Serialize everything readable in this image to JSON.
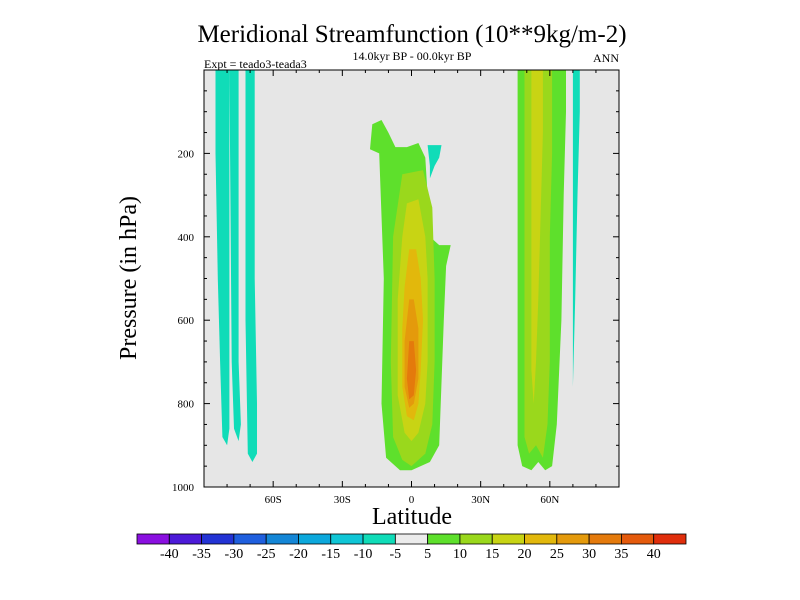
{
  "chart_data": {
    "type": "contour",
    "title": "Meridional Streamfunction (10**9kg/m-2)",
    "subtitle": "14.0kyr BP - 00.0kyr BP",
    "left_label": "Expt = teado3-teada3",
    "right_label": "ANN",
    "xlabel": "Latitude",
    "ylabel": "Pressure (in hPa)",
    "xlim": [
      -90,
      90
    ],
    "ylim": [
      1000,
      0
    ],
    "x_ticks": [
      {
        "value": -60,
        "label": "60S"
      },
      {
        "value": -30,
        "label": "30S"
      },
      {
        "value": 0,
        "label": "0"
      },
      {
        "value": 30,
        "label": "30N"
      },
      {
        "value": 60,
        "label": "60N"
      }
    ],
    "y_ticks": [
      {
        "value": 200,
        "label": "200"
      },
      {
        "value": 400,
        "label": "400"
      },
      {
        "value": 600,
        "label": "600"
      },
      {
        "value": 800,
        "label": "800"
      },
      {
        "value": 1000,
        "label": "1000"
      }
    ],
    "background_color": "#e6e6e6",
    "contour_levels": [
      -40,
      -35,
      -30,
      -25,
      -20,
      -15,
      -10,
      -5,
      5,
      10,
      15,
      20,
      25,
      30,
      35,
      40
    ],
    "colorbar": {
      "labels": [
        "-40",
        "-35",
        "-30",
        "-25",
        "-20",
        "-15",
        "-10",
        "-5",
        "5",
        "10",
        "15",
        "20",
        "25",
        "30",
        "35",
        "40"
      ],
      "colors": [
        "#8a10e0",
        "#4c1ad8",
        "#2333d4",
        "#1f5fde",
        "#1486d6",
        "#0ca8dc",
        "#10c6d6",
        "#10dcb8",
        "#ececec",
        "#5ee02c",
        "#9ad81c",
        "#c8d414",
        "#e2b80c",
        "#e49a0c",
        "#e47a0c",
        "#e45a0c",
        "#e02e0c"
      ]
    },
    "regions": [
      {
        "color": "#10dcb8",
        "points": [
          [
            -85,
            0
          ],
          [
            -79,
            0
          ],
          [
            -79,
            860
          ],
          [
            -80,
            900
          ],
          [
            -82,
            880
          ],
          [
            -83,
            700
          ],
          [
            -84,
            500
          ],
          [
            -85,
            200
          ]
        ]
      },
      {
        "color": "#10dcb8",
        "points": [
          [
            -79,
            0
          ],
          [
            -75,
            0
          ],
          [
            -75,
            700
          ],
          [
            -74,
            850
          ],
          [
            -75,
            890
          ],
          [
            -77,
            860
          ],
          [
            -78,
            700
          ]
        ]
      },
      {
        "color": "#10dcb8",
        "points": [
          [
            -72,
            0
          ],
          [
            -68,
            0
          ],
          [
            -68,
            500
          ],
          [
            -67,
            800
          ],
          [
            -67,
            920
          ],
          [
            -69,
            940
          ],
          [
            -71,
            920
          ],
          [
            -72,
            600
          ]
        ]
      },
      {
        "color": "#10dcb8",
        "points": [
          [
            7,
            180
          ],
          [
            13,
            180
          ],
          [
            12,
            210
          ],
          [
            10,
            230
          ],
          [
            8,
            260
          ],
          [
            8,
            230
          ]
        ]
      },
      {
        "color": "#10dcb8",
        "points": [
          [
            70,
            0
          ],
          [
            73,
            0
          ],
          [
            73,
            100
          ],
          [
            72,
            300
          ],
          [
            71,
            550
          ],
          [
            70,
            760
          ],
          [
            70,
            400
          ]
        ]
      },
      {
        "color": "#5ee02c",
        "points": [
          [
            -17,
            130
          ],
          [
            -13,
            120
          ],
          [
            -10,
            150
          ],
          [
            -7,
            185
          ],
          [
            -2,
            185
          ],
          [
            3,
            175
          ],
          [
            6,
            210
          ],
          [
            7,
            300
          ],
          [
            8,
            400
          ],
          [
            12,
            420
          ],
          [
            17,
            420
          ],
          [
            15,
            470
          ],
          [
            14,
            600
          ],
          [
            13,
            750
          ],
          [
            12,
            900
          ],
          [
            8,
            940
          ],
          [
            0,
            960
          ],
          [
            -5,
            960
          ],
          [
            -11,
            930
          ],
          [
            -13,
            800
          ],
          [
            -12,
            500
          ],
          [
            -14,
            200
          ],
          [
            -18,
            190
          ]
        ]
      },
      {
        "color": "#5ee02c",
        "points": [
          [
            46,
            0
          ],
          [
            67,
            0
          ],
          [
            67,
            100
          ],
          [
            66,
            300
          ],
          [
            65,
            600
          ],
          [
            63,
            850
          ],
          [
            61,
            950
          ],
          [
            58,
            960
          ],
          [
            55,
            940
          ],
          [
            52,
            960
          ],
          [
            48,
            950
          ],
          [
            46,
            900
          ],
          [
            46,
            500
          ],
          [
            46,
            200
          ]
        ]
      },
      {
        "color": "#9ad81c",
        "points": [
          [
            -4,
            250
          ],
          [
            5,
            240
          ],
          [
            9,
            330
          ],
          [
            10,
            500
          ],
          [
            10,
            700
          ],
          [
            9,
            850
          ],
          [
            6,
            920
          ],
          [
            0,
            950
          ],
          [
            -4,
            935
          ],
          [
            -8,
            880
          ],
          [
            -9,
            700
          ],
          [
            -8,
            400
          ]
        ]
      },
      {
        "color": "#9ad81c",
        "points": [
          [
            49,
            0
          ],
          [
            61,
            0
          ],
          [
            61,
            200
          ],
          [
            60,
            400
          ],
          [
            60,
            700
          ],
          [
            59,
            850
          ],
          [
            57,
            930
          ],
          [
            54,
            900
          ],
          [
            51,
            920
          ],
          [
            49,
            880
          ],
          [
            49,
            500
          ],
          [
            49,
            200
          ]
        ]
      },
      {
        "color": "#c8d414",
        "points": [
          [
            -2,
            320
          ],
          [
            3,
            310
          ],
          [
            6,
            400
          ],
          [
            7,
            500
          ],
          [
            7,
            700
          ],
          [
            6,
            800
          ],
          [
            3,
            870
          ],
          [
            0,
            890
          ],
          [
            -3,
            870
          ],
          [
            -6,
            780
          ],
          [
            -6,
            550
          ],
          [
            -4,
            400
          ]
        ]
      },
      {
        "color": "#c8d414",
        "points": [
          [
            52,
            0
          ],
          [
            57,
            0
          ],
          [
            57,
            150
          ],
          [
            56,
            350
          ],
          [
            55,
            550
          ],
          [
            54,
            700
          ],
          [
            53,
            800
          ],
          [
            52,
            720
          ],
          [
            52,
            400
          ],
          [
            52,
            200
          ]
        ]
      },
      {
        "color": "#e2b80c",
        "points": [
          [
            -1,
            430
          ],
          [
            2,
            430
          ],
          [
            4,
            500
          ],
          [
            5,
            600
          ],
          [
            4,
            720
          ],
          [
            3,
            800
          ],
          [
            1,
            840
          ],
          [
            -2,
            830
          ],
          [
            -4,
            760
          ],
          [
            -4,
            620
          ],
          [
            -3,
            520
          ]
        ]
      },
      {
        "color": "#e49a0c",
        "points": [
          [
            -1,
            550
          ],
          [
            1,
            550
          ],
          [
            3,
            620
          ],
          [
            3,
            740
          ],
          [
            1,
            800
          ],
          [
            -1,
            810
          ],
          [
            -3,
            760
          ],
          [
            -3,
            650
          ]
        ]
      },
      {
        "color": "#e47a0c",
        "points": [
          [
            -1,
            650
          ],
          [
            1,
            650
          ],
          [
            2,
            720
          ],
          [
            1,
            780
          ],
          [
            -1,
            790
          ],
          [
            -2,
            740
          ]
        ]
      }
    ]
  }
}
